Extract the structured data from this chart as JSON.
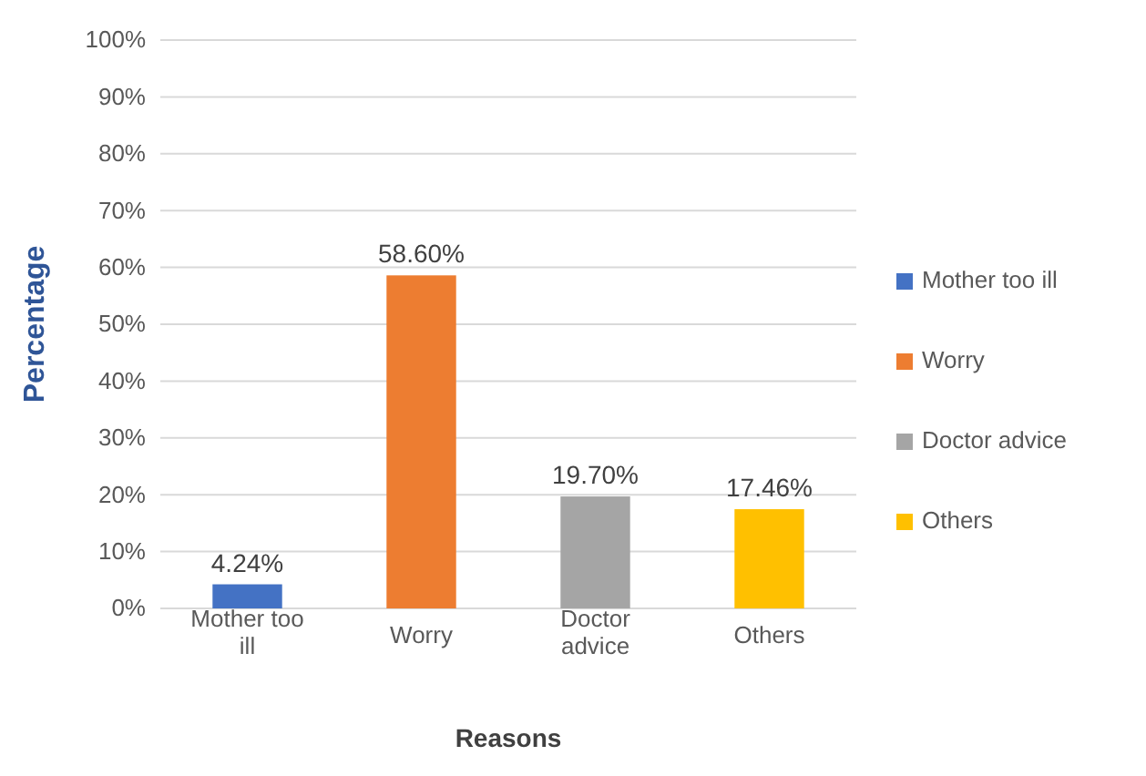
{
  "chart_data": {
    "type": "bar",
    "xlabel": "Reasons",
    "ylabel": "Percentage",
    "categories": [
      "Mother too ill",
      "Worry",
      "Doctor advice",
      "Others"
    ],
    "series": [
      {
        "name": "Mother too ill",
        "color": "#4472c4",
        "values": [
          4.24,
          null,
          null,
          null
        ],
        "value_labels": [
          "4.24%",
          null,
          null,
          null
        ]
      },
      {
        "name": "Worry",
        "color": "#ed7d31",
        "values": [
          null,
          58.6,
          null,
          null
        ],
        "value_labels": [
          null,
          "58.60%",
          null,
          null
        ]
      },
      {
        "name": "Doctor advice",
        "color": "#a5a5a5",
        "values": [
          null,
          null,
          19.7,
          null
        ],
        "value_labels": [
          null,
          null,
          "19.70%",
          null
        ]
      },
      {
        "name": "Others",
        "color": "#ffc000",
        "values": [
          null,
          null,
          null,
          17.46
        ],
        "value_labels": [
          null,
          null,
          null,
          "17.46%"
        ]
      }
    ],
    "ylim": [
      0,
      100
    ],
    "yticks": [
      {
        "value": 0,
        "label": "0%"
      },
      {
        "value": 10,
        "label": "10%"
      },
      {
        "value": 20,
        "label": "20%"
      },
      {
        "value": 30,
        "label": "30%"
      },
      {
        "value": 40,
        "label": "40%"
      },
      {
        "value": 50,
        "label": "50%"
      },
      {
        "value": 60,
        "label": "60%"
      },
      {
        "value": 70,
        "label": "70%"
      },
      {
        "value": 80,
        "label": "80%"
      },
      {
        "value": 90,
        "label": "90%"
      },
      {
        "value": 100,
        "label": "100%"
      }
    ],
    "grid": "y",
    "legend": "right"
  }
}
